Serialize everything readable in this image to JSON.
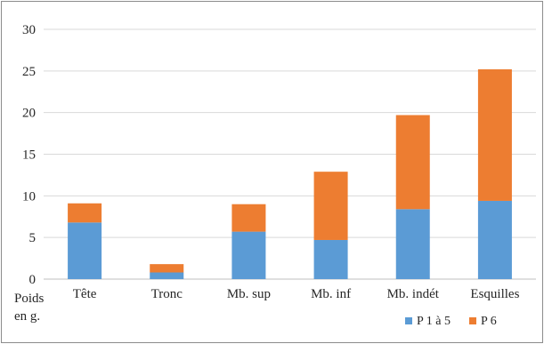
{
  "chart_data": {
    "type": "bar",
    "stacked": true,
    "title": "",
    "ylabel": "Poids\nen g.",
    "ylim": [
      0,
      30
    ],
    "yticks": [
      0,
      5,
      10,
      15,
      20,
      25,
      30
    ],
    "grid": true,
    "legend_position": "bottom-right",
    "categories": [
      "Tête",
      "Tronc",
      "Mb. sup",
      "Mb. inf",
      "Mb. indét",
      "Esquilles"
    ],
    "series": [
      {
        "name": "P 1 à 5",
        "color": "#5b9bd5",
        "values": [
          6.8,
          0.8,
          5.7,
          4.7,
          8.4,
          9.4
        ]
      },
      {
        "name": "P 6",
        "color": "#ed7d31",
        "values": [
          2.3,
          1.0,
          3.3,
          8.2,
          11.3,
          15.8
        ]
      }
    ]
  }
}
